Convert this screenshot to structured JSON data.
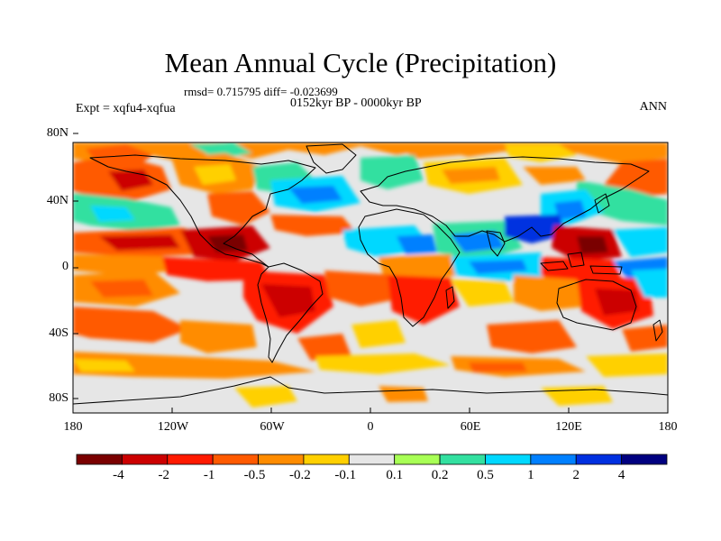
{
  "title": "Mean Annual Cycle (Precipitation)",
  "stats": "rmsd= 0.715795 diff= -0.023699",
  "period": "0152kyr BP - 0000kyr BP",
  "experiment": "Expt = xqfu4-xqfua",
  "season": "ANN",
  "lat_labels": [
    "80N",
    "40N",
    "0",
    "40S",
    "80S"
  ],
  "lon_labels": [
    "180",
    "120W",
    "60W",
    "0",
    "60E",
    "120E",
    "180"
  ],
  "colorbar": {
    "labels": [
      "-4",
      "-2",
      "-1",
      "-0.5",
      "-0.2",
      "-0.1",
      "0.1",
      "0.2",
      "0.5",
      "1",
      "2",
      "4"
    ],
    "colors": [
      "#7a0000",
      "#cc0000",
      "#ff1a00",
      "#ff5a00",
      "#ff8c00",
      "#ffd000",
      "#e6e6e6",
      "#a8ff55",
      "#33e0a0",
      "#00d8ff",
      "#0080ff",
      "#0030e0",
      "#000080"
    ]
  }
}
